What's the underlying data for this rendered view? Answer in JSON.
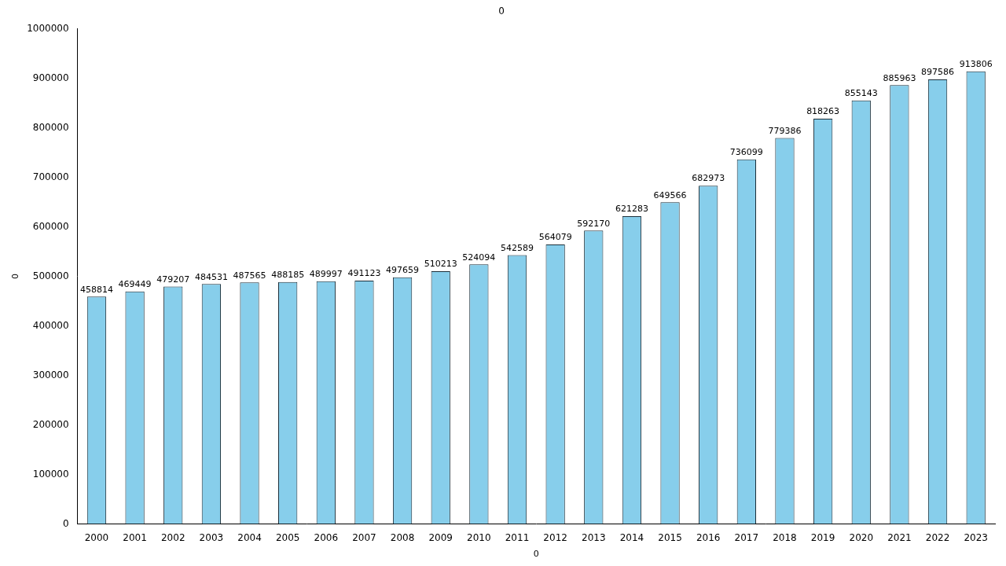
{
  "chart_data": {
    "type": "bar",
    "title": "0",
    "x_label": "0",
    "y_label": "0",
    "categories": [
      "2000",
      "2001",
      "2002",
      "2003",
      "2004",
      "2005",
      "2006",
      "2007",
      "2008",
      "2009",
      "2010",
      "2011",
      "2012",
      "2013",
      "2014",
      "2015",
      "2016",
      "2017",
      "2018",
      "2019",
      "2020",
      "2021",
      "2022",
      "2023"
    ],
    "values": [
      458814,
      469449,
      479207,
      484531,
      487565,
      488185,
      489997,
      491123,
      497659,
      510213,
      524094,
      542589,
      564079,
      592170,
      621283,
      649566,
      682973,
      736099,
      779386,
      818263,
      855143,
      885963,
      897586,
      913806
    ],
    "color": "#87ceeb",
    "ylim": [
      0,
      1000000
    ],
    "yticks": [
      0,
      100000,
      200000,
      300000,
      400000,
      500000,
      600000,
      700000,
      800000,
      900000,
      1000000
    ],
    "grid": false,
    "data_labels": true
  }
}
